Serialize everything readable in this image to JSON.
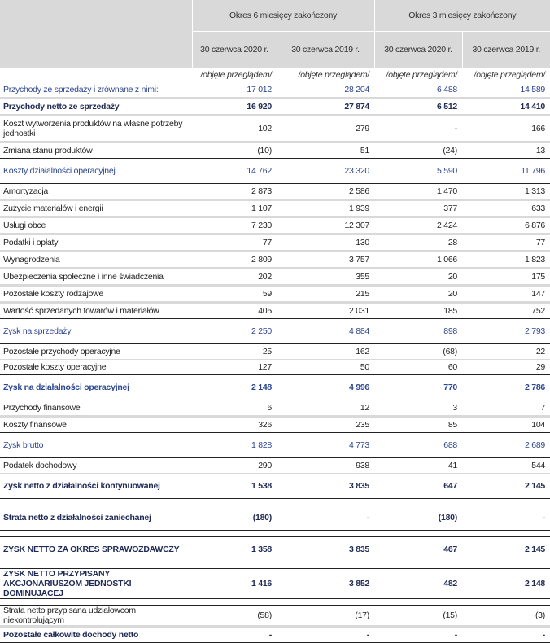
{
  "header": {
    "period_6m": "Okres 6 miesięcy zakończony",
    "period_3m": "Okres 3 miesięcy zakończony",
    "dates": [
      "30 czerwca 2020 r.",
      "30 czerwca 2019 r.",
      "30 czerwca 2020 r.",
      "30 czerwca 2019 r."
    ],
    "review_note": [
      "/objęte przeglądem/",
      "/objęte przeglądem/",
      "/objęte przeglądem/",
      "/objęte przeglądem/"
    ]
  },
  "rows": [
    {
      "label": "Przychody ze sprzedaży i zrównane z nimi:",
      "values": [
        "17 012",
        "28 204",
        "6 488",
        "14 589"
      ],
      "style": "blue",
      "border": "b-grey",
      "h": "r"
    },
    {
      "label": "Przychody netto ze sprzedaży",
      "values": [
        "16 920",
        "27 874",
        "6 512",
        "14 410"
      ],
      "style": "bold",
      "border": "b-grey",
      "h": "r"
    },
    {
      "label": "Koszt wytworzenia produktów na własne potrzeby jednostki",
      "values": [
        "102",
        "279",
        "-",
        "166"
      ],
      "style": "",
      "border": "b-grey",
      "h": "two"
    },
    {
      "label": "Zmiana stanu produktów",
      "values": [
        "(10)",
        "51",
        "(24)",
        "13"
      ],
      "style": "",
      "border": "b-black",
      "h": "r"
    },
    {
      "label": "Koszty działalności operacyjnej",
      "values": [
        "14 762",
        "23 320",
        "5 590",
        "11 796"
      ],
      "style": "blue",
      "border": "b-black",
      "h": "tall"
    },
    {
      "label": "Amortyzacja",
      "values": [
        "2 873",
        "2 586",
        "1 470",
        "1 313"
      ],
      "style": "",
      "border": "b-grey",
      "h": "r"
    },
    {
      "label": "Zużycie materiałów i energii",
      "values": [
        "1 107",
        "1 939",
        "377",
        "633"
      ],
      "style": "",
      "border": "b-grey",
      "h": "r"
    },
    {
      "label": "Usługi obce",
      "values": [
        "7 230",
        "12 307",
        "2 424",
        "6 876"
      ],
      "style": "",
      "border": "b-grey",
      "h": "r"
    },
    {
      "label": "Podatki i opłaty",
      "values": [
        "77",
        "130",
        "28",
        "77"
      ],
      "style": "",
      "border": "b-grey",
      "h": "r"
    },
    {
      "label": "Wynagrodzenia",
      "values": [
        "2 809",
        "3 757",
        "1 066",
        "1 823"
      ],
      "style": "",
      "border": "b-grey",
      "h": "r"
    },
    {
      "label": "Ubezpieczenia społeczne i inne świadczenia",
      "values": [
        "202",
        "355",
        "20",
        "175"
      ],
      "style": "",
      "border": "b-grey",
      "h": "r"
    },
    {
      "label": "Pozostałe koszty rodzajowe",
      "values": [
        "59",
        "215",
        "20",
        "147"
      ],
      "style": "",
      "border": "b-grey",
      "h": "r"
    },
    {
      "label": "Wartość sprzedanych towarów i materiałów",
      "values": [
        "405",
        "2 031",
        "185",
        "752"
      ],
      "style": "",
      "border": "b-black",
      "h": "r"
    },
    {
      "label": "Zysk na sprzedaży",
      "values": [
        "2 250",
        "4 884",
        "898",
        "2 793"
      ],
      "style": "blue",
      "border": "b-black",
      "h": "tall"
    },
    {
      "label": "Pozostałe przychody operacyjne",
      "values": [
        "25",
        "162",
        "(68)",
        "22"
      ],
      "style": "",
      "border": "b-thin",
      "h": "r"
    },
    {
      "label": "Pozostałe koszty operacyjne",
      "values": [
        "127",
        "50",
        "60",
        "29"
      ],
      "style": "",
      "border": "b-black",
      "h": "r"
    },
    {
      "label": "Zysk na działalności operacyjnej",
      "values": [
        "2 148",
        "4 996",
        "770",
        "2 786"
      ],
      "style": "bluebold",
      "border": "b-black",
      "h": "tall"
    },
    {
      "label": "Przychody finansowe",
      "values": [
        "6",
        "12",
        "3",
        "7"
      ],
      "style": "",
      "border": "b-grey",
      "h": "r"
    },
    {
      "label": "Koszty finansowe",
      "values": [
        "326",
        "235",
        "85",
        "104"
      ],
      "style": "",
      "border": "b-black",
      "h": "r"
    },
    {
      "label": "Zysk brutto",
      "values": [
        "1 828",
        "4 773",
        "688",
        "2 689"
      ],
      "style": "blue",
      "border": "b-black",
      "h": "tall"
    },
    {
      "label": "Podatek dochodowy",
      "values": [
        "290",
        "938",
        "41",
        "544"
      ],
      "style": "",
      "border": "b-thin",
      "h": "r"
    },
    {
      "label": "Zysk netto z działalności kontynuowanej",
      "values": [
        "1 538",
        "3 835",
        "647",
        "2 145"
      ],
      "style": "bold",
      "border": "b-black",
      "h": "tall"
    },
    {
      "spacer": true
    },
    {
      "label": "Strata netto z działalności zaniechanej",
      "values": [
        "(180)",
        "-",
        "(180)",
        "-"
      ],
      "style": "bold",
      "border": "b-black",
      "h": "tall"
    },
    {
      "spacer": true
    },
    {
      "label": "ZYSK NETTO ZA OKRES SPRAWOZDAWCZY",
      "values": [
        "1 358",
        "3 835",
        "467",
        "2 145"
      ],
      "style": "bold",
      "border": "b-black",
      "h": "tall"
    },
    {
      "spacer": true
    },
    {
      "label": "ZYSK NETTO PRZYPISANY AKCJONARIUSZOM JEDNOSTKI DOMINUJĄCEJ",
      "values": [
        "1 416",
        "3 852",
        "482",
        "2 148"
      ],
      "style": "bold",
      "border": "b-black",
      "h": "two"
    },
    {
      "spacer": true
    },
    {
      "label": "Strata netto przypisana udziałowcom niekontrolującym",
      "values": [
        "(58)",
        "(17)",
        "(15)",
        "(3)"
      ],
      "style": "",
      "border": "b-grey",
      "h": "r"
    },
    {
      "label": "Pozostałe całkowite dochody netto",
      "values": [
        "-",
        "-",
        "-",
        "-"
      ],
      "style": "bold",
      "border": "b-black",
      "h": "r"
    }
  ]
}
